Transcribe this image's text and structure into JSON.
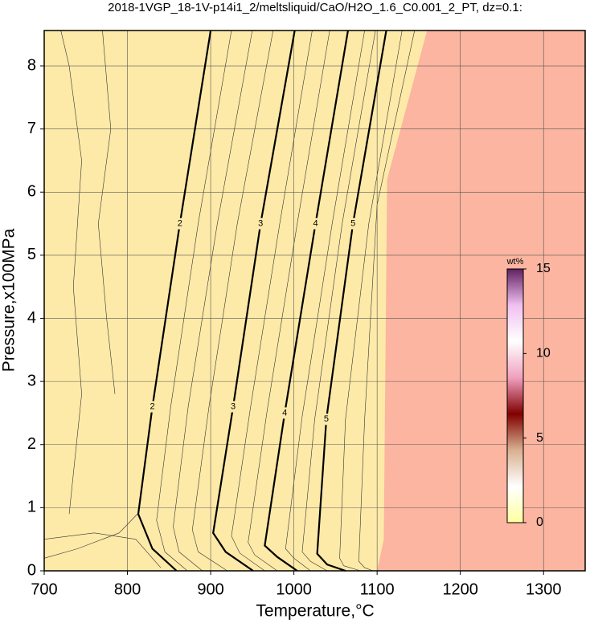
{
  "chart_data": {
    "type": "contour",
    "title": "2018-1VGP_18-1V-p14i1_2/meltsliquid/CaO/H2O_1.6_C0.001_2_PT, dz=0.1:",
    "x_label": "Temperature,°C",
    "y_label": "Pressure,x100MPa",
    "xlim": [
      700,
      1350
    ],
    "ylim": [
      0,
      8.56
    ],
    "xticks": [
      700,
      800,
      900,
      1000,
      1100,
      1200,
      1300
    ],
    "yticks": [
      0,
      1,
      2,
      3,
      4,
      5,
      6,
      7,
      8
    ],
    "grid": true,
    "background": "#feeaa8",
    "regions": [
      {
        "color": "#fbb5a0",
        "x": [
          1100,
          1108,
          1112,
          1160,
          1350,
          1350
        ],
        "y": [
          0,
          0.5,
          6.2,
          8.56,
          8.56,
          0
        ]
      }
    ],
    "contours": [
      {
        "level": 2,
        "x": [
          859,
          830,
          813,
          830,
          863,
          900
        ],
        "y": [
          0,
          0.35,
          0.9,
          2.6,
          5.5,
          8.56
        ]
      },
      {
        "level": 3,
        "x": [
          951,
          918,
          903,
          927,
          960,
          1001
        ],
        "y": [
          0,
          0.3,
          0.6,
          2.6,
          5.5,
          8.56
        ]
      },
      {
        "level": 4,
        "x": [
          1004,
          980,
          965,
          989,
          1026,
          1065
        ],
        "y": [
          0,
          0.22,
          0.4,
          2.5,
          5.5,
          8.56
        ]
      },
      {
        "level": 5,
        "x": [
          1062,
          1040,
          1028,
          1039,
          1071,
          1111
        ],
        "y": [
          0,
          0.1,
          0.27,
          2.4,
          5.5,
          8.56
        ]
      }
    ],
    "minor_contours": [
      {
        "x": [
          700,
          740,
          790,
          812
        ],
        "y": [
          0.2,
          0.35,
          0.6,
          0.9
        ]
      },
      {
        "x": [
          700,
          760,
          810,
          840
        ],
        "y": [
          0.5,
          0.6,
          0.5,
          0.05
        ]
      },
      {
        "x": [
          872,
          845,
          835,
          852,
          885,
          925
        ],
        "y": [
          0,
          0.3,
          0.8,
          2.6,
          5.5,
          8.56
        ]
      },
      {
        "x": [
          890,
          862,
          855,
          873,
          908,
          950
        ],
        "y": [
          0,
          0.3,
          0.7,
          2.6,
          5.5,
          8.56
        ]
      },
      {
        "x": [
          920,
          885,
          878,
          898,
          932,
          975
        ],
        "y": [
          0,
          0.3,
          0.65,
          2.6,
          5.5,
          8.56
        ]
      },
      {
        "x": [
          965,
          935,
          925,
          948,
          983,
          1022
        ],
        "y": [
          0,
          0.28,
          0.55,
          2.6,
          5.5,
          8.56
        ]
      },
      {
        "x": [
          980,
          953,
          945,
          968,
          1004,
          1043
        ],
        "y": [
          0,
          0.25,
          0.45,
          2.55,
          5.5,
          8.56
        ]
      },
      {
        "x": [
          1020,
          1000,
          990,
          1010,
          1046,
          1085
        ],
        "y": [
          0,
          0.2,
          0.35,
          2.45,
          5.5,
          8.56
        ]
      },
      {
        "x": [
          1040,
          1020,
          1010,
          1025,
          1058,
          1098
        ],
        "y": [
          0,
          0.15,
          0.3,
          2.4,
          5.5,
          8.56
        ]
      },
      {
        "x": [
          1080,
          1060,
          1055,
          1062,
          1090,
          1130
        ],
        "y": [
          0,
          0.08,
          0.2,
          2.4,
          5.5,
          8.56
        ]
      },
      {
        "x": [
          1095,
          1085,
          1078,
          1085,
          1100,
          1145
        ],
        "y": [
          0,
          0.05,
          0.15,
          2.4,
          5.8,
          8.56
        ]
      },
      {
        "x": [
          730,
          745,
          735,
          745,
          730,
          720
        ],
        "y": [
          0.9,
          2.8,
          4.5,
          6.5,
          8.0,
          8.56
        ]
      },
      {
        "x": [
          785,
          775,
          765,
          780,
          770
        ],
        "y": [
          2.8,
          4.0,
          5.5,
          7.0,
          8.56
        ]
      }
    ],
    "colorbar": {
      "label": "wt%",
      "lim": [
        0,
        15
      ],
      "ticks": [
        0,
        5,
        10,
        15
      ],
      "colors": [
        "#ffffa0",
        "#ffffff",
        "#d8b090",
        "#800000",
        "#f0a0c0",
        "#ffffff",
        "#f0c0f0",
        "#602060"
      ]
    }
  }
}
